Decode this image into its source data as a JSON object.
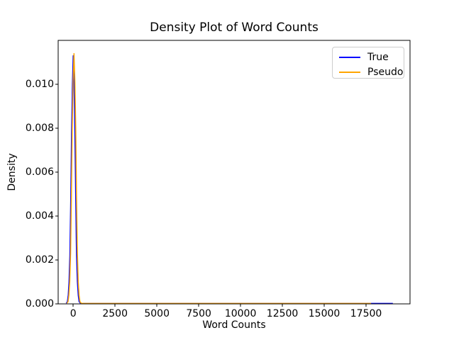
{
  "figure": {
    "title": "Density Plot of Word Counts",
    "xlabel": "Word Counts",
    "ylabel": "Density",
    "background_color": "#ffffff",
    "spine_color": "#000000"
  },
  "chart_data": {
    "type": "line",
    "title": "Density Plot of Word Counts",
    "xlabel": "Word Counts",
    "ylabel": "Density",
    "xlim": [
      -900,
      20127
    ],
    "ylim": [
      0,
      0.012
    ],
    "grid": false,
    "legend_position": "upper right",
    "x_ticks": {
      "values": [
        0,
        2500,
        5000,
        7500,
        10000,
        12500,
        15000,
        17500
      ],
      "labels": [
        "0",
        "2500",
        "5000",
        "7500",
        "10000",
        "12500",
        "15000",
        "17500"
      ]
    },
    "y_ticks": {
      "values": [
        0.0,
        0.002,
        0.004,
        0.006,
        0.008,
        0.01
      ],
      "labels": [
        "0.000",
        "0.002",
        "0.004",
        "0.006",
        "0.008",
        "0.010"
      ]
    },
    "series": [
      {
        "name": "True",
        "color": "#0000ff",
        "points": [
          [
            -420,
            3e-05
          ],
          [
            -350,
            0.0001
          ],
          [
            -300,
            0.0004
          ],
          [
            -250,
            0.001
          ],
          [
            -200,
            0.0022
          ],
          [
            -150,
            0.0047
          ],
          [
            -100,
            0.0078
          ],
          [
            -50,
            0.01
          ],
          [
            0,
            0.0113
          ],
          [
            50,
            0.01
          ],
          [
            100,
            0.0078
          ],
          [
            150,
            0.0047
          ],
          [
            200,
            0.0022
          ],
          [
            250,
            0.001
          ],
          [
            300,
            0.0004
          ],
          [
            350,
            0.0001
          ],
          [
            430,
            3e-05
          ],
          [
            600,
            2e-05
          ],
          [
            1000,
            2e-05
          ],
          [
            2500,
            2e-05
          ],
          [
            5000,
            2e-05
          ],
          [
            7500,
            2e-05
          ],
          [
            10000,
            2e-05
          ],
          [
            12500,
            2e-05
          ],
          [
            15000,
            2e-05
          ],
          [
            17500,
            2e-05
          ],
          [
            19100,
            2e-05
          ]
        ]
      },
      {
        "name": "Pseudo",
        "color": "#ffa500",
        "points": [
          [
            -380,
            3e-05
          ],
          [
            -310,
            0.0001
          ],
          [
            -260,
            0.0004
          ],
          [
            -210,
            0.001
          ],
          [
            -160,
            0.0023
          ],
          [
            -110,
            0.0048
          ],
          [
            -60,
            0.0079
          ],
          [
            -10,
            0.0101
          ],
          [
            45,
            0.0114
          ],
          [
            100,
            0.0101
          ],
          [
            150,
            0.0079
          ],
          [
            200,
            0.0048
          ],
          [
            250,
            0.0023
          ],
          [
            300,
            0.001
          ],
          [
            350,
            0.0004
          ],
          [
            400,
            0.0001
          ],
          [
            480,
            3e-05
          ],
          [
            650,
            2e-05
          ],
          [
            1200,
            2e-05
          ],
          [
            3000,
            2e-05
          ],
          [
            6000,
            2e-05
          ],
          [
            9000,
            2e-05
          ],
          [
            12000,
            2e-05
          ],
          [
            15000,
            2e-05
          ],
          [
            17800,
            2e-05
          ]
        ]
      }
    ]
  }
}
